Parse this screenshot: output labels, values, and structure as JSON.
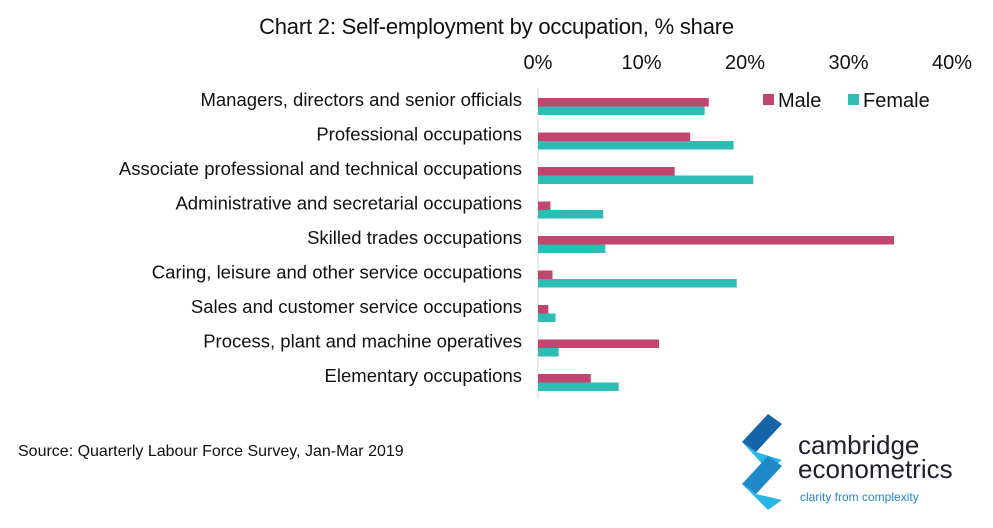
{
  "chart_data": {
    "type": "bar",
    "orientation": "horizontal",
    "title": "Chart 2: Self-employment by occupation, % share",
    "categories": [
      "Managers, directors and senior officials",
      "Professional occupations",
      "Associate professional and technical occupations",
      "Administrative and secretarial occupations",
      "Skilled trades occupations",
      "Caring, leisure and other service occupations",
      "Sales and customer service occupations",
      "Process, plant and machine operatives",
      "Elementary occupations"
    ],
    "series": [
      {
        "name": "Male",
        "color": "#c2456e",
        "values": [
          16.5,
          14.7,
          13.2,
          1.2,
          34.4,
          1.4,
          1.0,
          11.7,
          5.1
        ]
      },
      {
        "name": "Female",
        "color": "#2ebdb5",
        "values": [
          16.1,
          18.9,
          20.8,
          6.3,
          6.5,
          19.2,
          1.7,
          2.0,
          7.8
        ]
      }
    ],
    "x_axis": {
      "position": "top",
      "ticks": [
        "0%",
        "10%",
        "20%",
        "30%",
        "40%"
      ],
      "tick_values": [
        0,
        10,
        20,
        30,
        40
      ],
      "range": [
        0,
        40
      ]
    },
    "grid": false,
    "legend_position": "top-right"
  },
  "source": "Source: Quarterly Labour Force Survey, Jan-Mar 2019",
  "logo": {
    "name_line1": "cambridge",
    "name_line2": "econometrics",
    "tagline": "clarity from complexity",
    "colors": {
      "dark": "#1565a8",
      "mid": "#1e88c8",
      "light": "#29b6e8"
    }
  }
}
